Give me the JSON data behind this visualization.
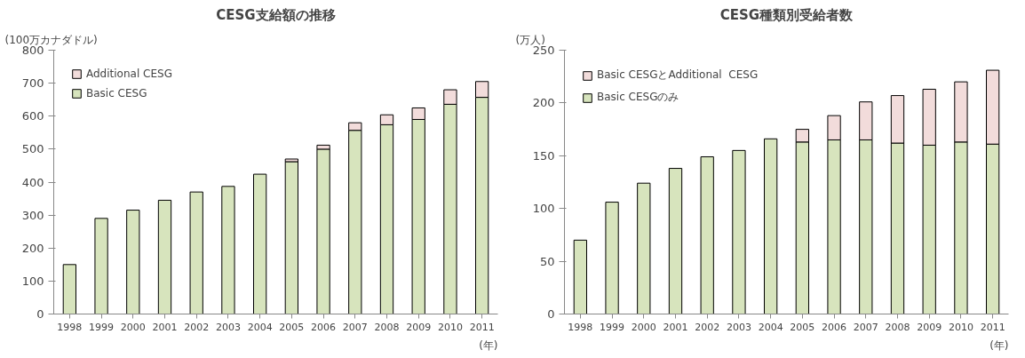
{
  "chart_data": [
    {
      "type": "bar",
      "title": "CESG支給額の推移",
      "ylabel": "(100万カナダドル)",
      "xlabel": "(年)",
      "categories": [
        "1998",
        "1999",
        "2000",
        "2001",
        "2002",
        "2003",
        "2004",
        "2005",
        "2006",
        "2007",
        "2008",
        "2009",
        "2010",
        "2011"
      ],
      "stacked": true,
      "ylim": [
        0,
        800
      ],
      "yticks": [
        0,
        100,
        200,
        300,
        400,
        500,
        600,
        700,
        800
      ],
      "grid": false,
      "legend": "top left",
      "series": [
        {
          "name": "Basic CESG",
          "color": "#d7e4bd",
          "values": [
            150,
            290,
            315,
            345,
            370,
            387,
            424,
            462,
            500,
            557,
            574,
            590,
            636,
            657
          ]
        },
        {
          "name": "Additional CESG",
          "color": "#f2dcdb",
          "values": [
            null,
            null,
            null,
            null,
            null,
            null,
            null,
            8,
            12,
            23,
            30,
            35,
            44,
            48
          ]
        }
      ]
    },
    {
      "type": "bar",
      "title": "CESG種類別受給者数",
      "ylabel": "(万人)",
      "xlabel": "(年)",
      "categories": [
        "1998",
        "1999",
        "2000",
        "2001",
        "2002",
        "2003",
        "2004",
        "2005",
        "2006",
        "2007",
        "2008",
        "2009",
        "2010",
        "2011"
      ],
      "stacked": true,
      "ylim": [
        0,
        250
      ],
      "yticks": [
        0,
        50,
        100,
        150,
        200,
        250
      ],
      "grid": false,
      "legend": "top left",
      "series": [
        {
          "name": "Basic CESGのみ",
          "color": "#d7e4bd",
          "values": [
            70,
            106,
            124,
            138,
            149,
            155,
            166,
            163,
            165,
            165,
            162,
            160,
            163,
            161
          ]
        },
        {
          "name": "Basic CESGとAdditional  CESG",
          "color": "#f2dcdb",
          "values": [
            null,
            null,
            null,
            null,
            null,
            null,
            null,
            12,
            23,
            36,
            45,
            53,
            57,
            70
          ]
        }
      ]
    }
  ]
}
